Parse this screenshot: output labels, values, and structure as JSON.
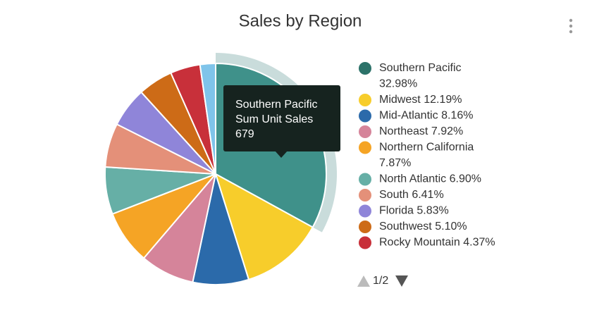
{
  "chart_data": {
    "type": "pie",
    "title": "Sales by Region",
    "categories": [
      "Southern Pacific",
      "Midwest",
      "Mid-Atlantic",
      "Northeast",
      "Northern California",
      "North Atlantic",
      "South",
      "Florida",
      "Southwest",
      "Rocky Mountain",
      null
    ],
    "values": [
      32.98,
      12.19,
      8.16,
      7.92,
      7.87,
      6.9,
      6.41,
      5.83,
      5.1,
      4.37,
      2.27
    ],
    "value_labels": [
      "32.98%",
      "12.19%",
      "8.16%",
      "7.92%",
      "7.87%",
      "6.90%",
      "6.41%",
      "5.83%",
      "5.10%",
      "4.37%",
      null
    ],
    "colors": [
      "#3f918a",
      "#f7cd2b",
      "#2b6aaa",
      "#d5849a",
      "#f5a425",
      "#66afa6",
      "#e49079",
      "#8f85d9",
      "#cd6b17",
      "#c8303a",
      "#7fc4ea"
    ],
    "legend_colors": [
      "#2c7269",
      "#f7cd2b",
      "#2b6aaa",
      "#d5849a",
      "#f5a425",
      "#66afa6",
      "#e49079",
      "#8f85d9",
      "#cd6b17",
      "#c8303a",
      "#7fc4ea"
    ],
    "legend_page": "1/2",
    "tooltip": {
      "category": "Southern Pacific",
      "measure": "Sum Unit Sales",
      "value": 679
    }
  }
}
